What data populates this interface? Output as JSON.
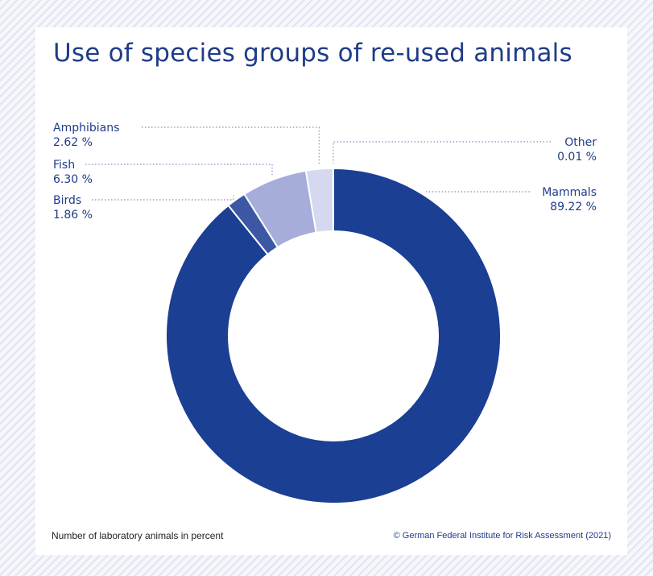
{
  "chart_data": {
    "type": "pie",
    "title": "Use of species groups of re-used animals",
    "subtitle": "",
    "xlabel": "",
    "ylabel": "",
    "categories": [
      "Mammals",
      "Birds",
      "Fish",
      "Amphibians",
      "Other"
    ],
    "values": [
      89.22,
      1.86,
      6.3,
      2.62,
      0.01
    ],
    "value_labels": [
      "89.22 %",
      "1.86 %",
      "6.30 %",
      "2.62 %",
      "0.01 %"
    ],
    "colors": [
      "#1a3f93",
      "#3c58a4",
      "#a6addb",
      "#d5d8ef",
      "#2a67b8"
    ],
    "legend": "none",
    "grid": false
  },
  "footnote": {
    "left": "Number of laboratory animals in percent",
    "right": "© German Federal Institute for Risk Assessment (2021)"
  }
}
